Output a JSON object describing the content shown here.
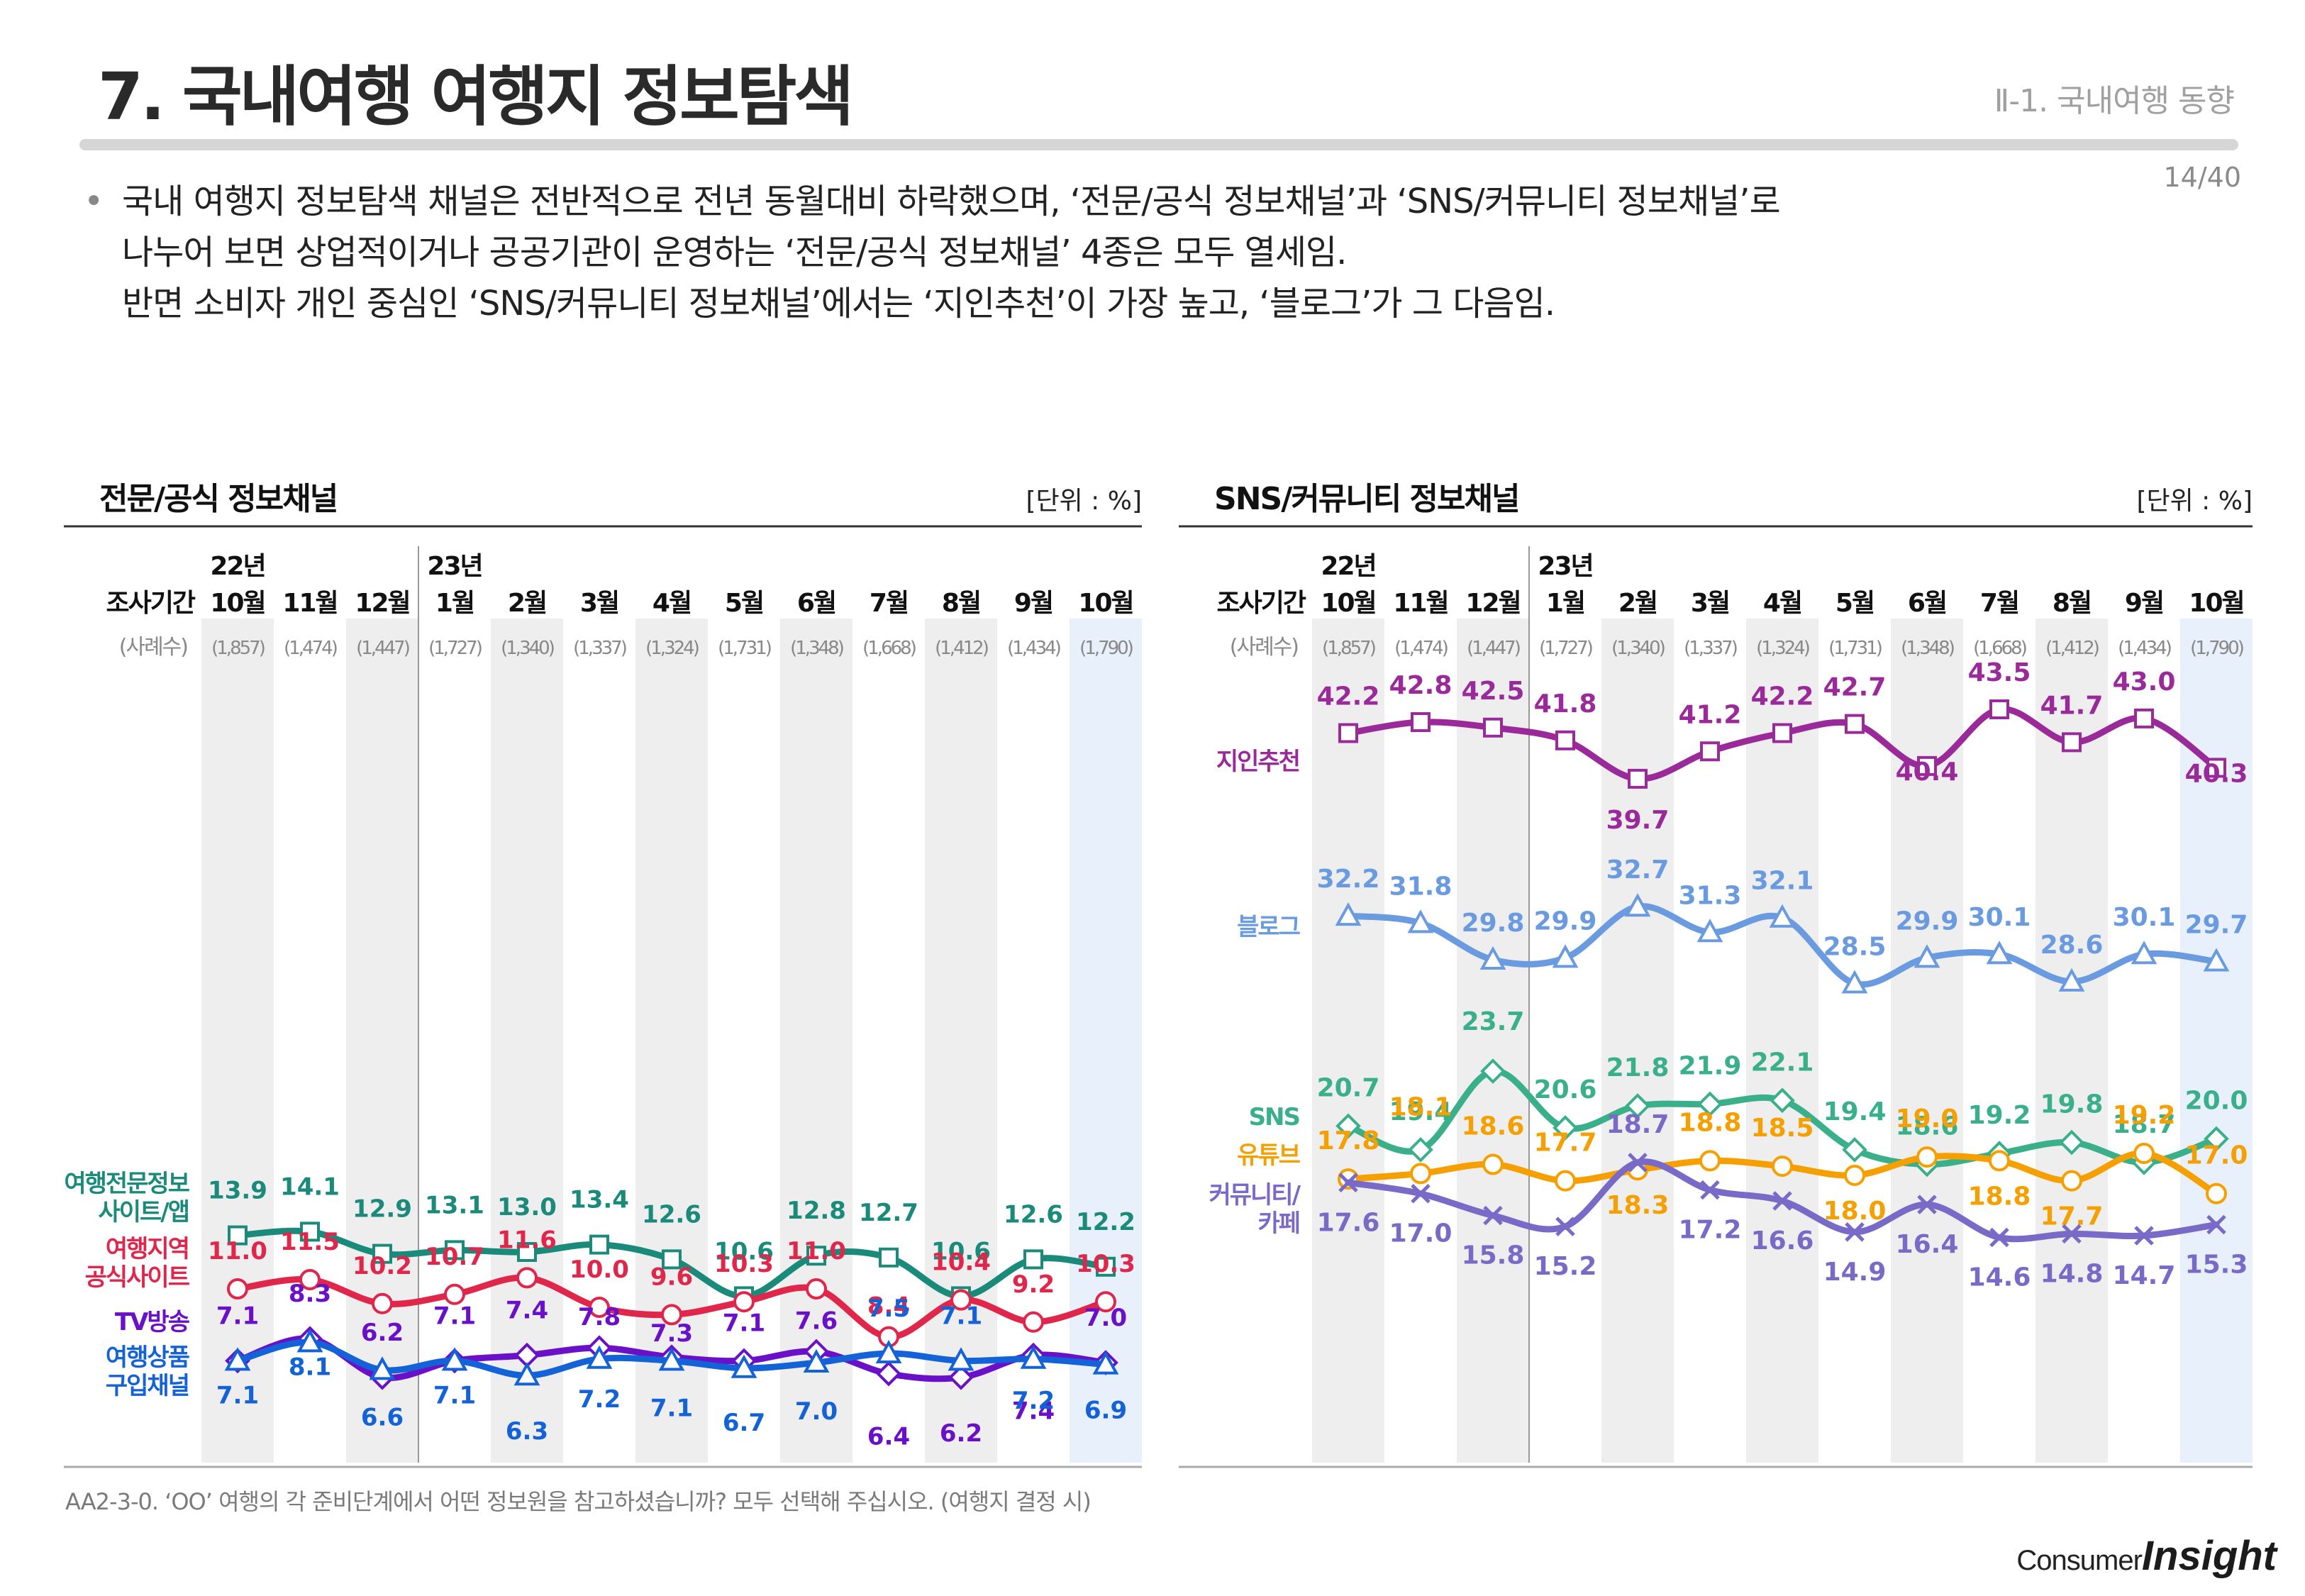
{
  "header": {
    "title": "7. 국내여행 여행지 정보탐색",
    "section": "Ⅱ-1. 국내여행 동향",
    "page": "14/40"
  },
  "summary": {
    "bullet": "•",
    "lines": [
      "국내 여행지 정보탐색 채널은 전반적으로 전년 동월대비 하락했으며, ‘전문/공식 정보채널’과 ‘SNS/커뮤니티 정보채널’로",
      "나누어 보면 상업적이거나 공공기관이 운영하는 ‘전문/공식 정보채널’ 4종은 모두 열세임.",
      "반면 소비자 개인 중심인 ‘SNS/커뮤니티 정보채널’에서는 ‘지인추천’이 가장 높고, ‘블로그’가 그 다음임."
    ]
  },
  "footnote": "AA2-3-0. ‘OO’ 여행의 각 준비단계에서 어떤 정보원을 참고하셨습니까? 모두 선택해 주십시오. (여행지 결정 시)",
  "logo": {
    "consumer": "Consumer",
    "insight": "Insight"
  },
  "common": {
    "period_label": "조사기간",
    "sample_label": "(사례수)",
    "year_22": "22년",
    "year_23": "23년",
    "months": [
      "10월",
      "11월",
      "12월",
      "1월",
      "2월",
      "3월",
      "4월",
      "5월",
      "6월",
      "7월",
      "8월",
      "9월",
      "10월"
    ],
    "samples": [
      "(1,857)",
      "(1,474)",
      "(1,447)",
      "(1,727)",
      "(1,340)",
      "(1,337)",
      "(1,324)",
      "(1,731)",
      "(1,348)",
      "(1,668)",
      "(1,412)",
      "(1,434)",
      "(1,790)"
    ]
  },
  "chart_data": [
    {
      "type": "line",
      "title": "전문/공식 정보채널",
      "unit": "[단위 : %]",
      "categories": [
        "22년 10월",
        "11월",
        "12월",
        "23년 1월",
        "2월",
        "3월",
        "4월",
        "5월",
        "6월",
        "7월",
        "8월",
        "9월",
        "10월"
      ],
      "series": [
        {
          "name": "여행전문정보 사이트/앱",
          "label_lines": [
            "여행전문정보",
            "사이트/앱"
          ],
          "color": "#1a8a7a",
          "marker": "square",
          "values": [
            13.9,
            14.1,
            12.9,
            13.1,
            13.0,
            13.4,
            12.6,
            10.6,
            12.8,
            12.7,
            10.6,
            12.6,
            12.2
          ]
        },
        {
          "name": "여행지역 공식사이트",
          "label_lines": [
            "여행지역",
            "공식사이트"
          ],
          "color": "#e0264a",
          "marker": "circle",
          "values": [
            11.0,
            11.5,
            10.2,
            10.7,
            11.6,
            10.0,
            9.6,
            10.3,
            11.0,
            8.4,
            10.4,
            9.2,
            10.3
          ]
        },
        {
          "name": "TV방송",
          "label_lines": [
            "TV방송"
          ],
          "color": "#6a10c8",
          "marker": "diamond",
          "values": [
            7.1,
            8.3,
            6.2,
            7.1,
            7.4,
            7.8,
            7.3,
            7.1,
            7.6,
            6.4,
            6.2,
            7.4,
            7.0
          ]
        },
        {
          "name": "여행상품 구입채널",
          "label_lines": [
            "여행상품",
            "구입채널"
          ],
          "color": "#1462d8",
          "marker": "triangle",
          "values": [
            7.1,
            8.1,
            6.6,
            7.1,
            6.3,
            7.2,
            7.1,
            6.7,
            7.0,
            7.5,
            7.1,
            7.2,
            6.9
          ]
        }
      ]
    },
    {
      "type": "line",
      "title": "SNS/커뮤니티 정보채널",
      "unit": "[단위 : %]",
      "categories": [
        "22년 10월",
        "11월",
        "12월",
        "23년 1월",
        "2월",
        "3월",
        "4월",
        "5월",
        "6월",
        "7월",
        "8월",
        "9월",
        "10월"
      ],
      "series": [
        {
          "name": "지인추천",
          "label_lines": [
            "지인추천"
          ],
          "color": "#9a2a9a",
          "marker": "square",
          "values": [
            42.2,
            42.8,
            42.5,
            41.8,
            39.7,
            41.2,
            42.2,
            42.7,
            40.4,
            43.5,
            41.7,
            43.0,
            40.3
          ]
        },
        {
          "name": "블로그",
          "label_lines": [
            "블로그"
          ],
          "color": "#6a9be0",
          "marker": "triangle",
          "values": [
            32.2,
            31.8,
            29.8,
            29.9,
            32.7,
            31.3,
            32.1,
            28.5,
            29.9,
            30.1,
            28.6,
            30.1,
            29.7
          ]
        },
        {
          "name": "SNS",
          "label_lines": [
            "SNS"
          ],
          "color": "#3ab08a",
          "marker": "diamond",
          "values": [
            20.7,
            19.4,
            23.7,
            20.6,
            21.8,
            21.9,
            22.1,
            19.4,
            18.6,
            19.2,
            19.8,
            18.7,
            20.0
          ]
        },
        {
          "name": "유튜브",
          "label_lines": [
            "유튜브"
          ],
          "color": "#f5a000",
          "marker": "circle",
          "values": [
            17.8,
            18.1,
            18.6,
            17.7,
            18.3,
            18.8,
            18.5,
            18.0,
            19.0,
            18.8,
            17.7,
            19.2,
            17.0
          ]
        },
        {
          "name": "커뮤니티/카페",
          "label_lines": [
            "커뮤니티/",
            "카페"
          ],
          "color": "#7a6ac8",
          "marker": "x",
          "values": [
            17.6,
            17.0,
            15.8,
            15.2,
            18.7,
            17.2,
            16.6,
            14.9,
            16.4,
            14.6,
            14.8,
            14.7,
            15.3
          ]
        }
      ]
    }
  ]
}
